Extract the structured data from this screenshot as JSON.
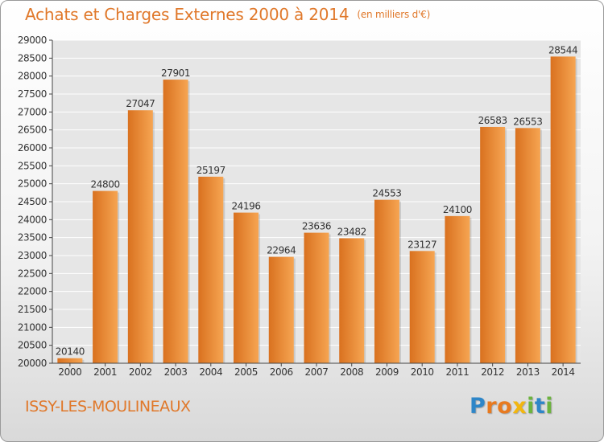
{
  "header": {
    "title": "Achats et Charges Externes 2000 à 2014",
    "unit": "(en milliers d'€)"
  },
  "footer": {
    "city": "ISSY-LES-MOULINEAUX",
    "brand": "Proxiti",
    "brand_letters": [
      {
        "char": "P",
        "color": "#2e86c8"
      },
      {
        "char": "r",
        "color": "#e87a1f"
      },
      {
        "char": "o",
        "color": "#e87a1f"
      },
      {
        "char": "x",
        "color": "#f2b60f"
      },
      {
        "char": "i",
        "color": "#6cb33e"
      },
      {
        "char": "t",
        "color": "#2e86c8"
      },
      {
        "char": "i",
        "color": "#6cb33e"
      }
    ]
  },
  "colors": {
    "title": "#e0782a",
    "bar_light": "#f6a552",
    "bar_dark": "#d9711f",
    "plot_background": "#e6e6e6",
    "grid": "#ffffff"
  },
  "chart_data": {
    "type": "bar",
    "title": "Achats et Charges Externes 2000 à 2014",
    "subtitle": "(en milliers d'€)",
    "xlabel": "",
    "ylabel": "",
    "categories": [
      "2000",
      "2001",
      "2002",
      "2003",
      "2004",
      "2005",
      "2006",
      "2007",
      "2008",
      "2009",
      "2010",
      "2011",
      "2012",
      "2013",
      "2014"
    ],
    "values": [
      20140,
      24800,
      27047,
      27901,
      25197,
      24196,
      22964,
      23636,
      23482,
      24553,
      23127,
      24100,
      26583,
      26553,
      28544
    ],
    "data_labels": [
      "20140",
      "24800",
      "27047",
      "27901",
      "25197",
      "24196",
      "22964",
      "23636",
      "23482",
      "24553",
      "23127",
      "24100",
      "26583",
      "26553",
      "28544"
    ],
    "ylim": [
      20000,
      29000
    ],
    "yticks": [
      20000,
      20500,
      21000,
      21500,
      22000,
      22500,
      23000,
      23500,
      24000,
      24500,
      25000,
      25500,
      26000,
      26500,
      27000,
      27500,
      28000,
      28500,
      29000
    ],
    "ytick_labels": [
      "20000",
      "20500",
      "21000",
      "21500",
      "22000",
      "22500",
      "23000",
      "23500",
      "24000",
      "24500",
      "25000",
      "25500",
      "26000",
      "26500",
      "27000",
      "27500",
      "28000",
      "28500",
      "29000"
    ],
    "grid": true,
    "legend": "none"
  }
}
